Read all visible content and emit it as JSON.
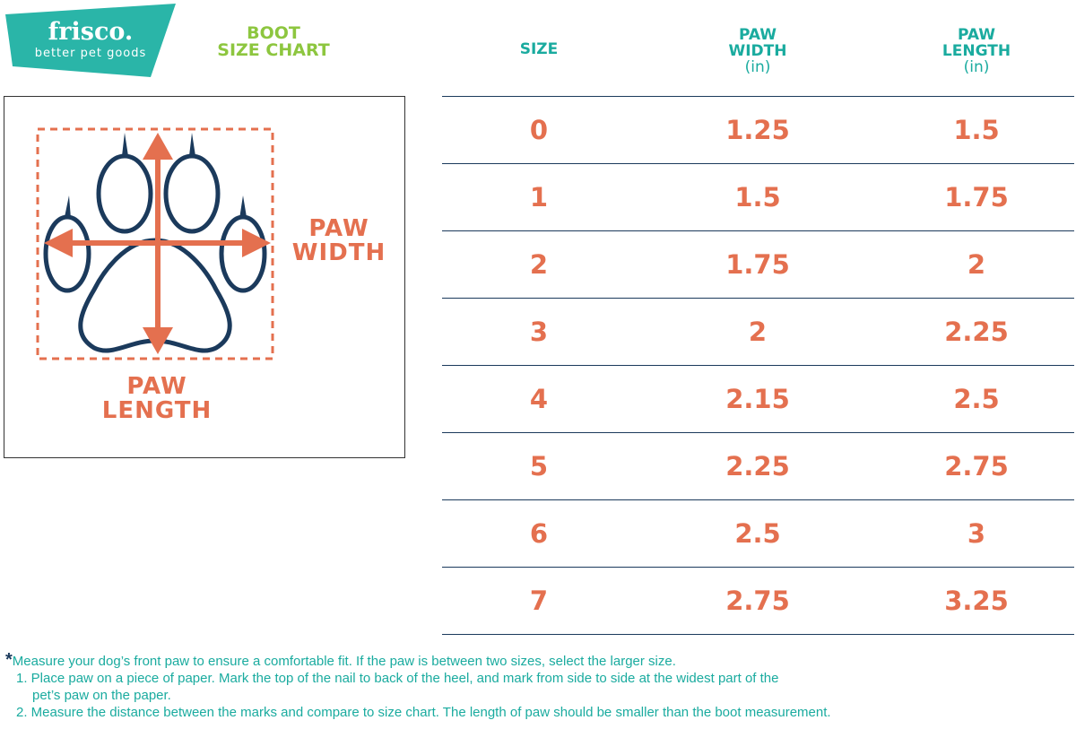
{
  "logo": {
    "brand": "frisco.",
    "tagline": "better pet goods"
  },
  "title": {
    "line1": "BOOT",
    "line2": "SIZE CHART"
  },
  "table": {
    "headers": [
      {
        "line1": "SIZE",
        "line2": "",
        "unit": ""
      },
      {
        "line1": "PAW",
        "line2": "WIDTH",
        "unit": "(in)"
      },
      {
        "line1": "PAW",
        "line2": "LENGTH",
        "unit": "(in)"
      }
    ],
    "rows": [
      [
        "0",
        "1.25",
        "1.5"
      ],
      [
        "1",
        "1.5",
        "1.75"
      ],
      [
        "2",
        "1.75",
        "2"
      ],
      [
        "3",
        "2",
        "2.25"
      ],
      [
        "4",
        "2.15",
        "2.5"
      ],
      [
        "5",
        "2.25",
        "2.75"
      ],
      [
        "6",
        "2.5",
        "3"
      ],
      [
        "7",
        "2.75",
        "3.25"
      ]
    ]
  },
  "diagram": {
    "width_label_1": "PAW",
    "width_label_2": "WIDTH",
    "length_label_1": "PAW",
    "length_label_2": "LENGTH"
  },
  "notes": {
    "star": "*",
    "intro": "Measure your dog’s front paw to ensure a comfortable fit. If the paw is between two sizes, select the larger size.",
    "step1a": "1. Place paw on a piece of paper. Mark the top of the nail to back of the heel, and mark from side to side at the widest part of the",
    "step1b": "pet’s paw on the paper.",
    "step2": "2. Measure the distance between the marks and compare to size chart. The length of paw should be smaller than the boot measurement."
  },
  "colors": {
    "teal": "#1aab9f",
    "green": "#8dc63f",
    "orange": "#e4704f",
    "navy": "#1b3a5c"
  }
}
